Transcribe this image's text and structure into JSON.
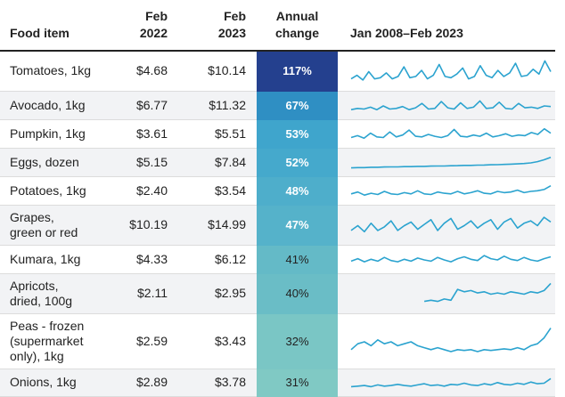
{
  "header": {
    "item": "Food item",
    "feb2022": "Feb\n2022",
    "feb2023": "Feb\n2023",
    "change": "Annual\nchange",
    "trend": "Jan 2008–Feb 2023"
  },
  "colors": {
    "spark": "#2ba3cf",
    "dark_text": "#222222",
    "light_text": "#ffffff"
  },
  "chart_data": {
    "type": "table",
    "columns": [
      "Food item",
      "Feb 2022",
      "Feb 2023",
      "Annual change",
      "Jan 2008–Feb 2023"
    ],
    "rows": [
      {
        "item": "Tomatoes, 1kg",
        "feb2022": "$4.68",
        "feb2023": "$10.14",
        "change": "117%",
        "change_value": 117,
        "color": "#24408e",
        "text_color": "#ffffff",
        "spark": [
          0.2,
          0.35,
          0.15,
          0.5,
          0.2,
          0.25,
          0.45,
          0.2,
          0.3,
          0.7,
          0.25,
          0.3,
          0.55,
          0.2,
          0.35,
          0.8,
          0.3,
          0.25,
          0.4,
          0.65,
          0.2,
          0.3,
          0.75,
          0.35,
          0.25,
          0.55,
          0.3,
          0.45,
          0.85,
          0.3,
          0.35,
          0.6,
          0.4,
          0.95,
          0.5
        ]
      },
      {
        "item": "Avocado, 1kg",
        "feb2022": "$6.77",
        "feb2023": "$11.32",
        "change": "67%",
        "change_value": 67,
        "color": "#2f8fc3",
        "text_color": "#ffffff",
        "spark": [
          0.2,
          0.3,
          0.25,
          0.4,
          0.2,
          0.5,
          0.25,
          0.3,
          0.45,
          0.2,
          0.35,
          0.7,
          0.25,
          0.3,
          0.85,
          0.35,
          0.25,
          0.75,
          0.3,
          0.4,
          0.9,
          0.3,
          0.35,
          0.8,
          0.3,
          0.25,
          0.7,
          0.35,
          0.4,
          0.3,
          0.5,
          0.45
        ]
      },
      {
        "item": "Pumpkin, 1kg",
        "feb2022": "$3.61",
        "feb2023": "$5.51",
        "change": "53%",
        "change_value": 53,
        "color": "#3fa5cc",
        "text_color": "#ffffff",
        "spark": [
          0.25,
          0.4,
          0.2,
          0.6,
          0.3,
          0.25,
          0.7,
          0.3,
          0.45,
          0.85,
          0.35,
          0.3,
          0.5,
          0.35,
          0.25,
          0.4,
          0.9,
          0.35,
          0.3,
          0.45,
          0.35,
          0.6,
          0.3,
          0.4,
          0.55,
          0.35,
          0.45,
          0.4,
          0.65,
          0.5,
          0.95,
          0.6
        ]
      },
      {
        "item": "Eggs, dozen",
        "feb2022": "$5.15",
        "feb2023": "$7.84",
        "change": "52%",
        "change_value": 52,
        "color": "#45a9cc",
        "text_color": "#ffffff",
        "spark": [
          0.1,
          0.12,
          0.12,
          0.15,
          0.15,
          0.17,
          0.18,
          0.18,
          0.2,
          0.2,
          0.22,
          0.22,
          0.24,
          0.25,
          0.25,
          0.27,
          0.28,
          0.3,
          0.3,
          0.32,
          0.33,
          0.35,
          0.36,
          0.38,
          0.4,
          0.42,
          0.45,
          0.5,
          0.6,
          0.75,
          0.95
        ]
      },
      {
        "item": "Potatoes, 1kg",
        "feb2022": "$2.40",
        "feb2023": "$3.54",
        "change": "48%",
        "change_value": 48,
        "color": "#4eaecb",
        "text_color": "#ffffff",
        "spark": [
          0.3,
          0.45,
          0.2,
          0.35,
          0.25,
          0.5,
          0.3,
          0.25,
          0.4,
          0.3,
          0.55,
          0.3,
          0.25,
          0.45,
          0.35,
          0.3,
          0.5,
          0.3,
          0.4,
          0.55,
          0.35,
          0.3,
          0.5,
          0.4,
          0.45,
          0.6,
          0.4,
          0.5,
          0.55,
          0.65,
          0.95
        ]
      },
      {
        "item": "Grapes,\ngreen or red",
        "feb2022": "$10.19",
        "feb2023": "$14.99",
        "change": "47%",
        "change_value": 47,
        "color": "#55b2ca",
        "text_color": "#ffffff",
        "spark": [
          0.3,
          0.5,
          0.25,
          0.6,
          0.3,
          0.45,
          0.7,
          0.3,
          0.5,
          0.65,
          0.35,
          0.55,
          0.75,
          0.3,
          0.6,
          0.8,
          0.35,
          0.5,
          0.7,
          0.4,
          0.6,
          0.75,
          0.35,
          0.65,
          0.8,
          0.4,
          0.6,
          0.7,
          0.5,
          0.85,
          0.65
        ]
      },
      {
        "item": "Kumara, 1kg",
        "feb2022": "$4.33",
        "feb2023": "$6.12",
        "change": "41%",
        "change_value": 41,
        "color": "#64bac7",
        "text_color": "#222222",
        "spark": [
          0.4,
          0.6,
          0.35,
          0.55,
          0.4,
          0.7,
          0.45,
          0.35,
          0.55,
          0.4,
          0.65,
          0.5,
          0.4,
          0.7,
          0.5,
          0.35,
          0.6,
          0.75,
          0.55,
          0.45,
          0.85,
          0.6,
          0.5,
          0.8,
          0.55,
          0.45,
          0.7,
          0.5,
          0.4,
          0.6,
          0.75
        ]
      },
      {
        "item": "Apricots,\ndried, 100g",
        "feb2022": "$2.11",
        "feb2023": "$2.95",
        "change": "40%",
        "change_value": 40,
        "color": "#6abdc6",
        "text_color": "#222222",
        "spark": [
          null,
          null,
          null,
          null,
          null,
          null,
          null,
          null,
          null,
          null,
          null,
          0.2,
          0.25,
          0.2,
          0.3,
          0.25,
          0.7,
          0.6,
          0.65,
          0.55,
          0.6,
          0.5,
          0.55,
          0.5,
          0.6,
          0.55,
          0.5,
          0.6,
          0.55,
          0.65,
          0.95
        ]
      },
      {
        "item": "Peas - frozen\n(supermarket\nonly), 1kg",
        "feb2022": "$2.59",
        "feb2023": "$3.43",
        "change": "32%",
        "change_value": 32,
        "color": "#7ac6c5",
        "text_color": "#222222",
        "spark": [
          0.3,
          0.45,
          0.5,
          0.4,
          0.55,
          0.45,
          0.5,
          0.4,
          0.45,
          0.5,
          0.4,
          0.35,
          0.3,
          0.35,
          0.3,
          0.25,
          0.3,
          0.28,
          0.3,
          0.25,
          0.3,
          0.28,
          0.3,
          0.32,
          0.3,
          0.35,
          0.3,
          0.4,
          0.45,
          0.6,
          0.85
        ]
      },
      {
        "item": "Onions, 1kg",
        "feb2022": "$2.89",
        "feb2023": "$3.78",
        "change": "31%",
        "change_value": 31,
        "color": "#80c9c4",
        "text_color": "#222222",
        "spark": [
          0.2,
          0.25,
          0.3,
          0.2,
          0.35,
          0.25,
          0.3,
          0.4,
          0.3,
          0.25,
          0.35,
          0.45,
          0.3,
          0.35,
          0.25,
          0.4,
          0.35,
          0.5,
          0.35,
          0.3,
          0.45,
          0.35,
          0.55,
          0.4,
          0.35,
          0.5,
          0.4,
          0.6,
          0.45,
          0.5,
          0.9
        ]
      }
    ]
  }
}
